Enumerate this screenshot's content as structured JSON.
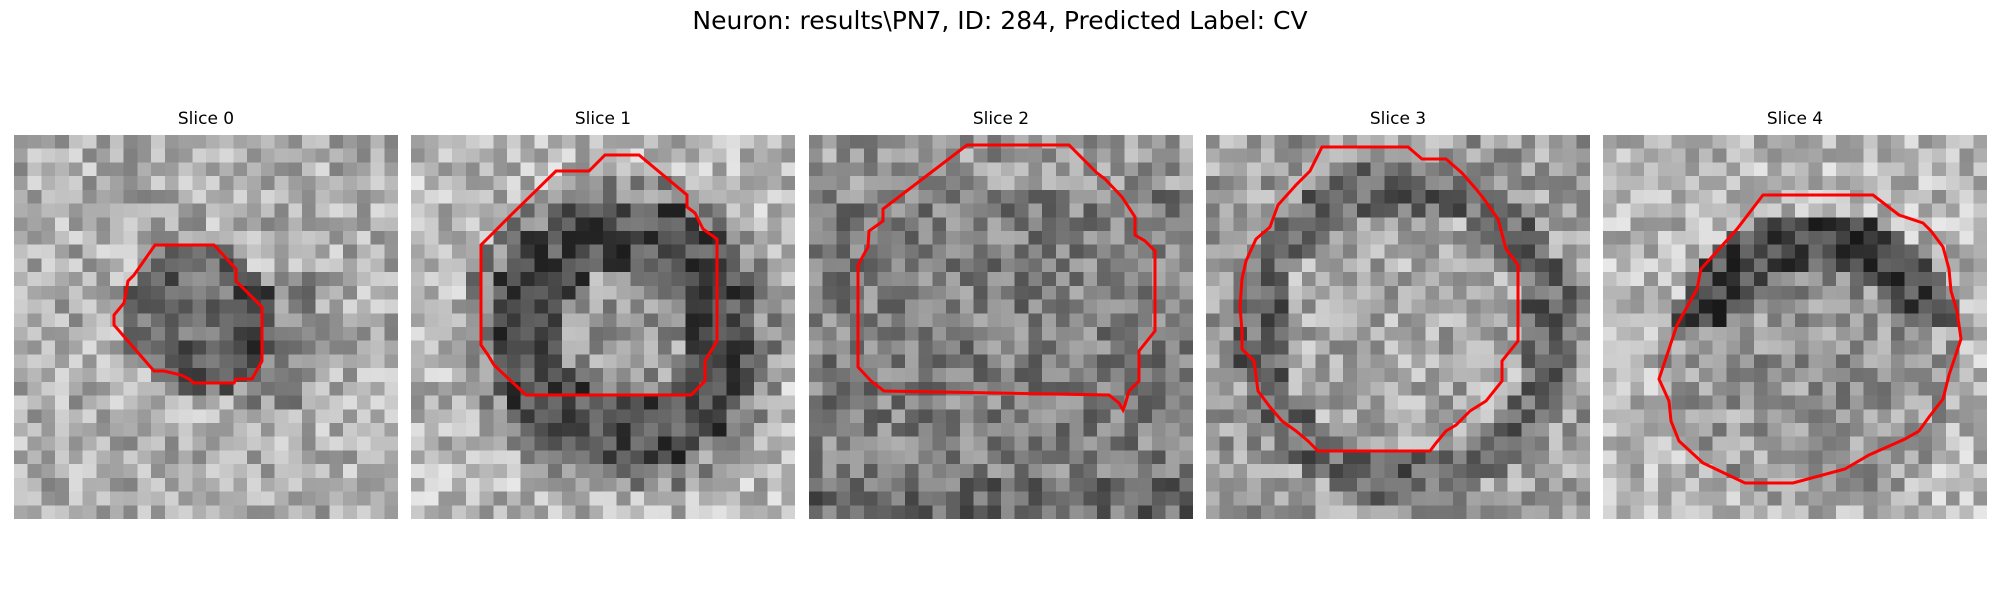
{
  "figure": {
    "title": "Neuron: results\\PN7, ID: 284, Predicted Label: CV"
  },
  "colors": {
    "contour": "#ff0000",
    "background": "#ffffff"
  },
  "panels": [
    {
      "title": "Slice 0",
      "seed": 11,
      "pattern": "blob"
    },
    {
      "title": "Slice 1",
      "seed": 23,
      "pattern": "ring"
    },
    {
      "title": "Slice 2",
      "seed": 37,
      "pattern": "noisy"
    },
    {
      "title": "Slice 3",
      "seed": 41,
      "pattern": "disk"
    },
    {
      "title": "Slice 4",
      "seed": 53,
      "pattern": "arc"
    }
  ]
}
